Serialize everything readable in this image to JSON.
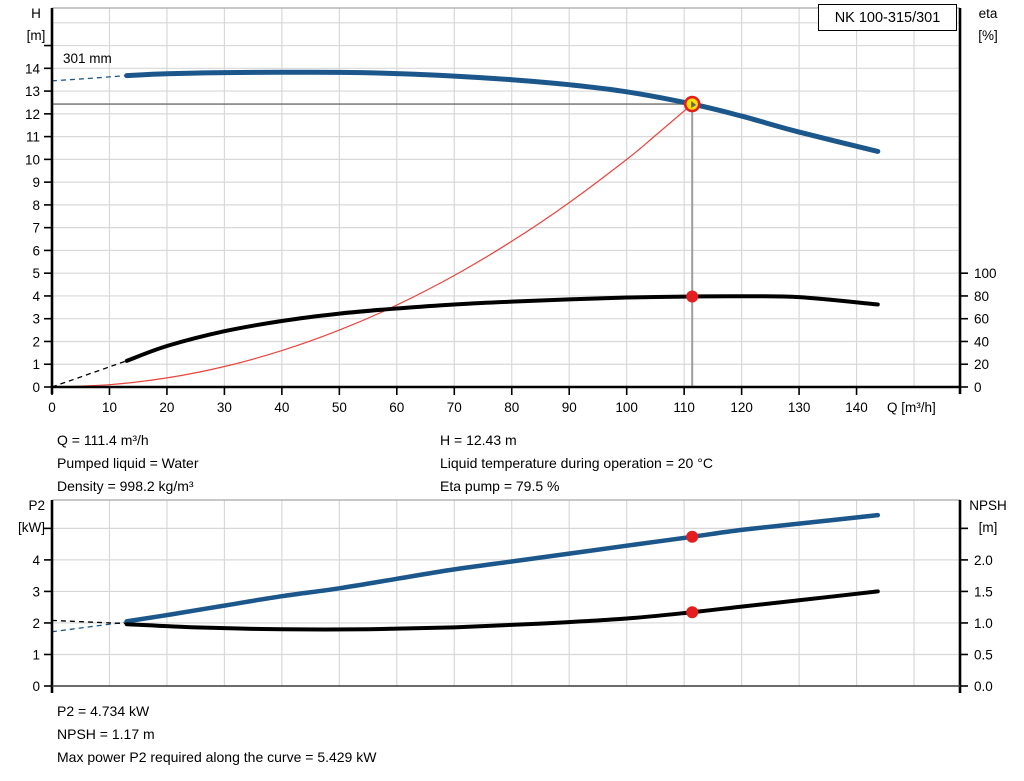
{
  "colors": {
    "curve_blue": "#1c578c",
    "curve_black": "#000000",
    "system_red": "#e9443d",
    "marker_red": "#e41e1e",
    "duty_fill": "#ffe100",
    "grid": "#d8d8d8",
    "border_light": "#a6a6a6",
    "crosshair_h": "#6e6e6e",
    "crosshair_v": "#9e9e9e",
    "axis": "#000000"
  },
  "operating_info": {
    "left": [
      "Q = 111.4 m³/h",
      "Pumped liquid = Water",
      "Density = 998.2 kg/m³"
    ],
    "right": [
      "H = 12.43 m",
      "Liquid temperature during operation = 20 °C",
      "Eta pump = 79.5 %"
    ]
  },
  "power_info": [
    "P2 = 4.734 kW",
    "NPSH = 1.17 m",
    "Max power P2 required along the curve = 5.429 kW"
  ],
  "chart_data": [
    {
      "type": "line",
      "title": "NK 100-315/301",
      "xlabel": "Q [m³/h]",
      "ylabel_left": [
        "H",
        "[m]"
      ],
      "ylabel_right": [
        "eta",
        "[%]"
      ],
      "x_axis": {
        "min": 0,
        "max": 158,
        "ticks": [
          0,
          10,
          20,
          30,
          40,
          50,
          60,
          70,
          80,
          90,
          100,
          110,
          120,
          130,
          140
        ],
        "grid_step": 10,
        "grid_max": 150
      },
      "y_left": {
        "min": 0,
        "max": 16.65,
        "grid_step": 1,
        "ticks": [
          [
            0,
            "0"
          ],
          [
            1,
            "1"
          ],
          [
            2,
            "2"
          ],
          [
            3,
            "3"
          ],
          [
            4,
            "4"
          ],
          [
            5,
            "5"
          ],
          [
            6,
            "6"
          ],
          [
            7,
            "7"
          ],
          [
            8,
            "8"
          ],
          [
            9,
            "9"
          ],
          [
            10,
            "10"
          ],
          [
            11,
            "11"
          ],
          [
            12,
            "12"
          ],
          [
            13,
            "13"
          ],
          [
            14,
            "14"
          ],
          [
            15,
            ""
          ]
        ]
      },
      "y_right": {
        "min": 0,
        "max": 333,
        "ticks": [
          [
            0,
            "0"
          ],
          [
            20,
            "20"
          ],
          [
            40,
            "40"
          ],
          [
            60,
            "60"
          ],
          [
            80,
            "80"
          ],
          [
            100,
            "100"
          ]
        ]
      },
      "series": [
        {
          "name": "system-curve",
          "axis": "left",
          "color": "#e9443d",
          "width": 1.2,
          "points": [
            [
              0,
              0
            ],
            [
              10,
              0.1
            ],
            [
              20,
              0.4
            ],
            [
              30,
              0.9
            ],
            [
              40,
              1.6
            ],
            [
              50,
              2.5
            ],
            [
              60,
              3.6
            ],
            [
              70,
              4.9
            ],
            [
              80,
              6.4
            ],
            [
              90,
              8.1
            ],
            [
              100,
              10.0
            ],
            [
              105,
              11.05
            ],
            [
              111.4,
              12.43
            ]
          ]
        },
        {
          "name": "eta-curve",
          "axis": "right",
          "color": "#000000",
          "width": 4,
          "dash_points": [
            [
              0,
              0
            ],
            [
              13,
              23
            ]
          ],
          "points": [
            [
              13,
              23
            ],
            [
              20,
              36
            ],
            [
              30,
              49
            ],
            [
              40,
              58
            ],
            [
              50,
              64.5
            ],
            [
              60,
              69
            ],
            [
              70,
              72.5
            ],
            [
              80,
              75
            ],
            [
              90,
              77
            ],
            [
              100,
              78.6
            ],
            [
              111.4,
              79.5
            ],
            [
              120,
              79.7
            ],
            [
              130,
              79
            ],
            [
              143.7,
              72.5
            ]
          ]
        },
        {
          "name": "head-curve",
          "label": "301 mm",
          "axis": "left",
          "color": "#1c578c",
          "width": 5,
          "dash_points": [
            [
              0,
              13.45
            ],
            [
              6,
              13.55
            ],
            [
              13,
              13.68
            ]
          ],
          "points": [
            [
              13,
              13.68
            ],
            [
              20,
              13.76
            ],
            [
              30,
              13.81
            ],
            [
              40,
              13.83
            ],
            [
              50,
              13.82
            ],
            [
              60,
              13.77
            ],
            [
              70,
              13.66
            ],
            [
              80,
              13.5
            ],
            [
              90,
              13.28
            ],
            [
              100,
              12.97
            ],
            [
              111.4,
              12.43
            ],
            [
              120,
              11.9
            ],
            [
              130,
              11.2
            ],
            [
              143.7,
              10.35
            ]
          ]
        }
      ],
      "crosshair": {
        "q": 111.4,
        "v": 12.43
      },
      "markers": [
        {
          "name": "eta-point",
          "q": 111.4,
          "v": 79.5,
          "axis": "right",
          "style": "dot"
        },
        {
          "name": "duty-point",
          "q": 111.4,
          "v": 12.43,
          "axis": "left",
          "style": "duty"
        }
      ],
      "duty_point": {
        "Q": 111.4,
        "H": 12.43,
        "eta": 79.5
      }
    },
    {
      "type": "line",
      "title": "",
      "xlabel": "",
      "ylabel_left": [
        "P2",
        "[kW]"
      ],
      "ylabel_right": [
        "NPSH",
        "[m]"
      ],
      "x_axis": {
        "min": 0,
        "max": 158,
        "ticks": [],
        "grid_step": 10,
        "grid_max": 150
      },
      "y_left": {
        "min": 0,
        "max": 5.9,
        "grid_step": 1,
        "ticks": [
          [
            0,
            "0"
          ],
          [
            1,
            "1"
          ],
          [
            2,
            "2"
          ],
          [
            3,
            "3"
          ],
          [
            4,
            "4"
          ],
          [
            5,
            ""
          ]
        ]
      },
      "y_right": {
        "min": 0,
        "max": 2.95,
        "ticks": [
          [
            0,
            "0.0"
          ],
          [
            0.5,
            "0.5"
          ],
          [
            1,
            "1.0"
          ],
          [
            1.5,
            "1.5"
          ],
          [
            2,
            "2.0"
          ],
          [
            2.5,
            ""
          ]
        ]
      },
      "series": [
        {
          "name": "p2-curve",
          "axis": "left",
          "color": "#1c578c",
          "width": 4.5,
          "dash_points": [
            [
              0,
              1.72
            ],
            [
              13,
              2.03
            ]
          ],
          "points": [
            [
              13,
              2.05
            ],
            [
              20,
              2.25
            ],
            [
              30,
              2.55
            ],
            [
              40,
              2.85
            ],
            [
              50,
              3.1
            ],
            [
              60,
              3.4
            ],
            [
              70,
              3.7
            ],
            [
              80,
              3.95
            ],
            [
              90,
              4.2
            ],
            [
              100,
              4.45
            ],
            [
              111.4,
              4.734
            ],
            [
              120,
              4.95
            ],
            [
              130,
              5.15
            ],
            [
              143.7,
              5.42
            ]
          ]
        },
        {
          "name": "npsh-curve",
          "axis": "right",
          "color": "#000000",
          "width": 4,
          "dash_points": [
            [
              0,
              1.04
            ],
            [
              13,
              0.99
            ]
          ],
          "points": [
            [
              13,
              0.98
            ],
            [
              25,
              0.93
            ],
            [
              40,
              0.9
            ],
            [
              55,
              0.9
            ],
            [
              70,
              0.93
            ],
            [
              85,
              0.99
            ],
            [
              100,
              1.07
            ],
            [
              111.4,
              1.17
            ],
            [
              120,
              1.26
            ],
            [
              130,
              1.36
            ],
            [
              143.7,
              1.5
            ]
          ]
        }
      ],
      "markers": [
        {
          "name": "p2-point",
          "q": 111.4,
          "v": 4.734,
          "axis": "left",
          "style": "dot"
        },
        {
          "name": "npsh-point",
          "q": 111.4,
          "v": 1.17,
          "axis": "right",
          "style": "dot"
        }
      ],
      "duty_point": {
        "Q": 111.4,
        "P2_kW": 4.734,
        "NPSH_m": 1.17
      }
    }
  ]
}
